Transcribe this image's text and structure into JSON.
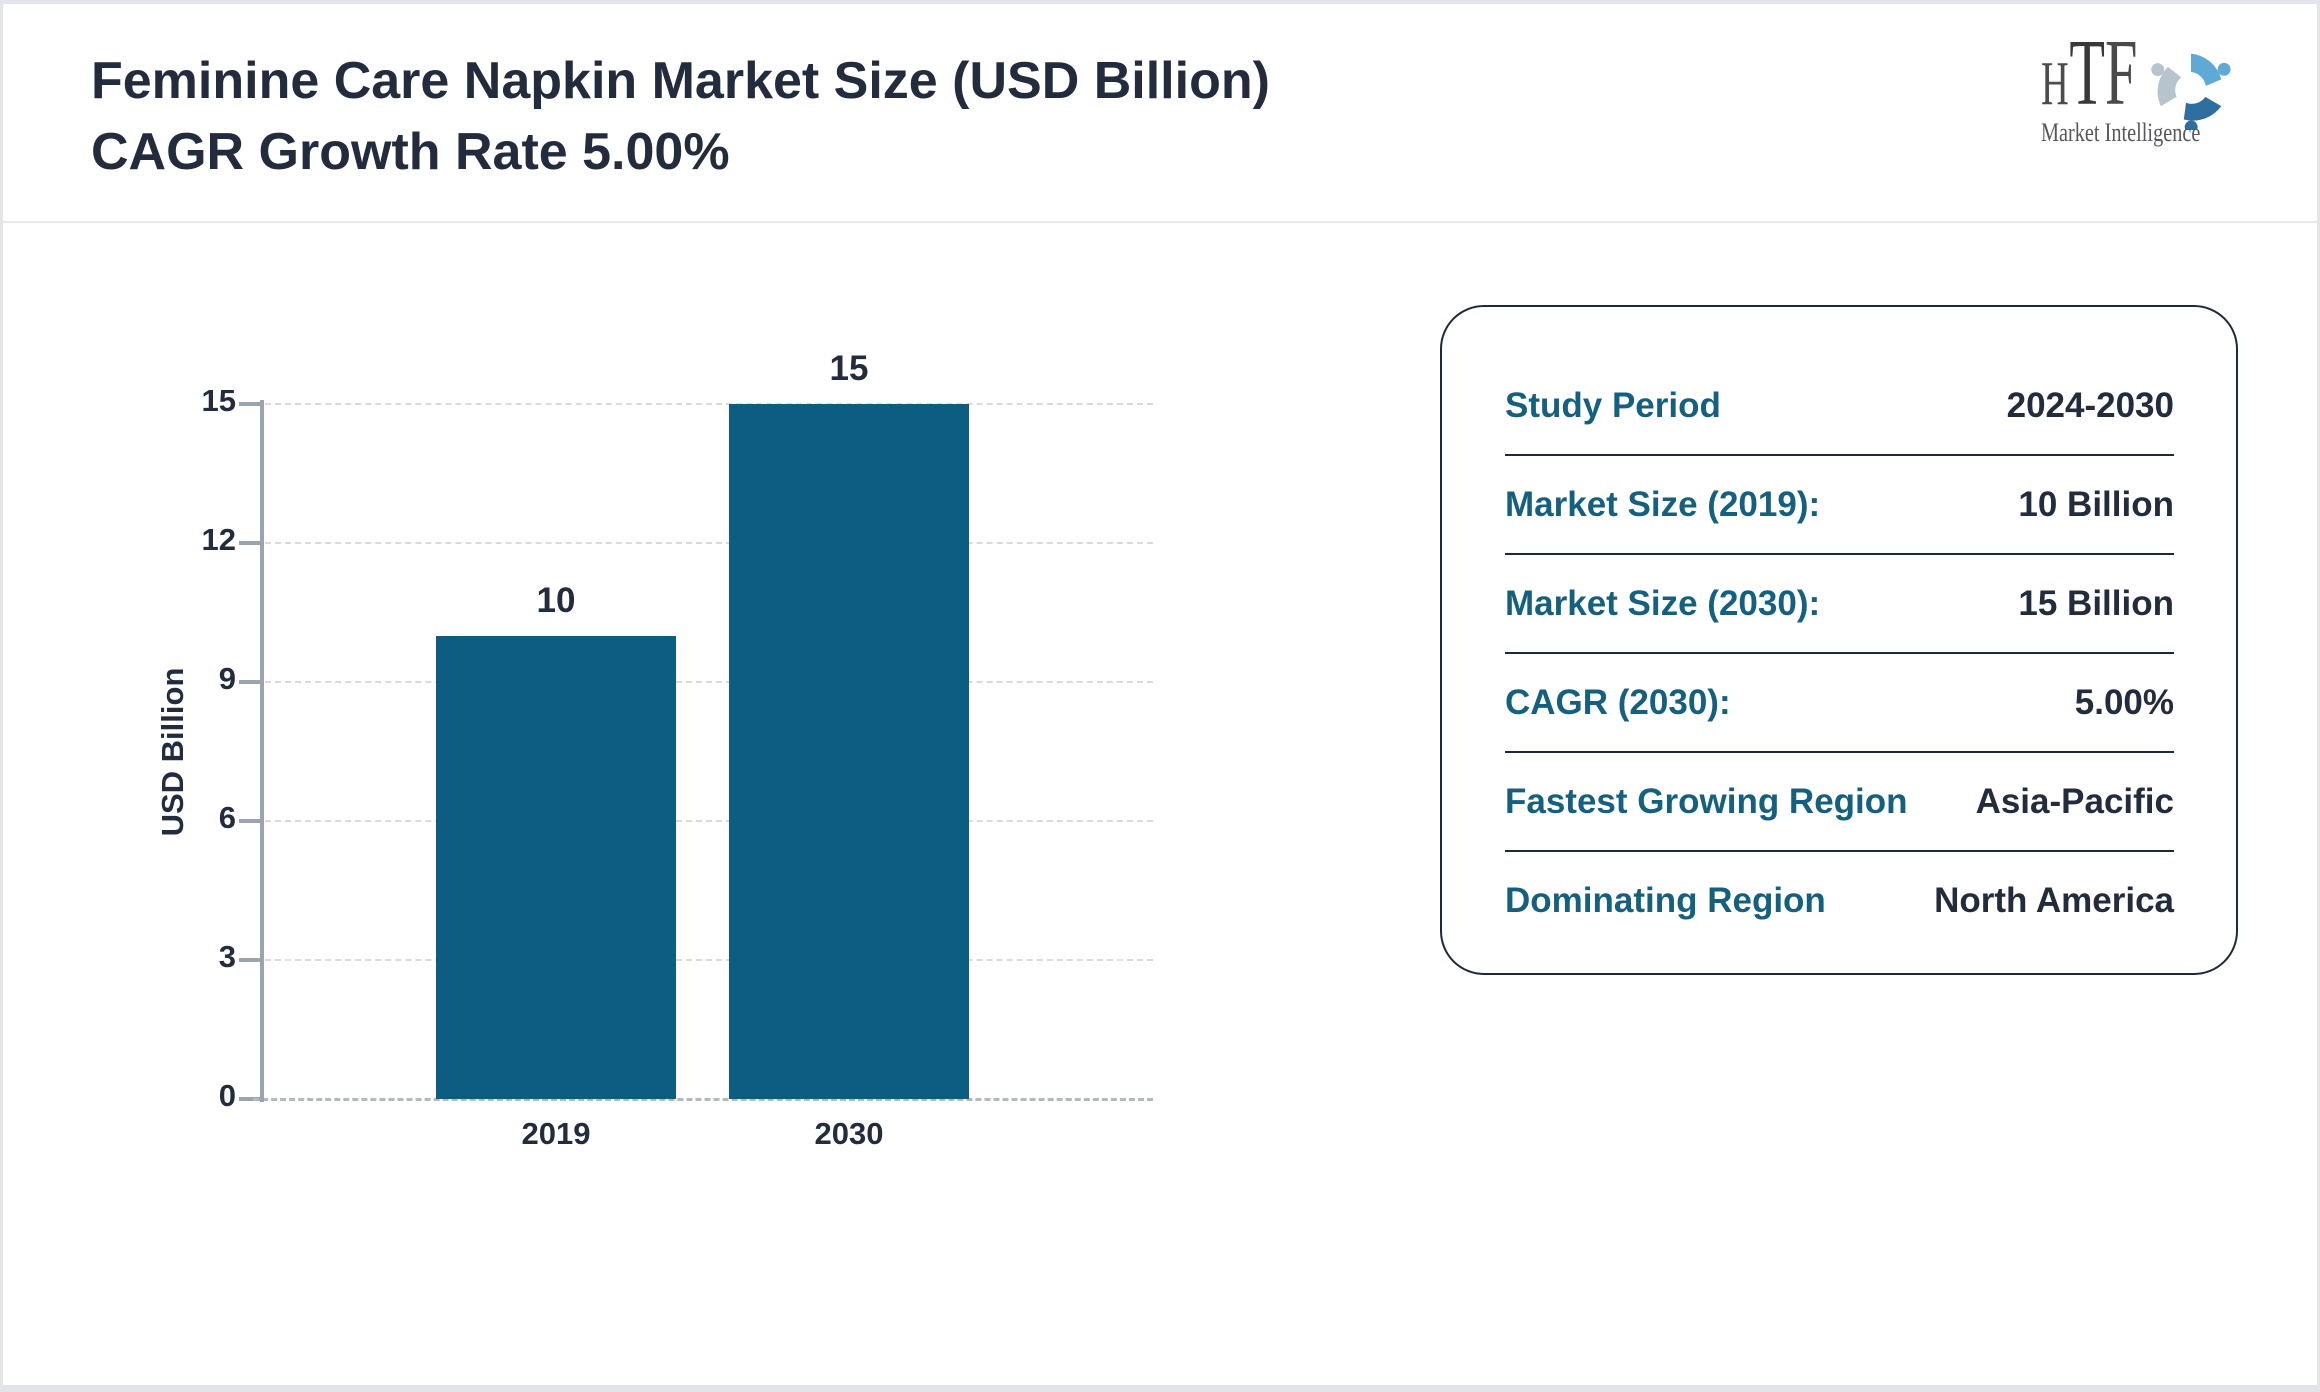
{
  "header": {
    "title_line1": "Feminine Care Napkin Market Size (USD Billion)",
    "title_line2": "CAGR Growth Rate 5.00%"
  },
  "logo": {
    "brand_letters": [
      "H",
      "T",
      "F"
    ],
    "tagline": "Market Intelligence",
    "colors": {
      "light_blue": "#5ea9d6",
      "steel_blue": "#2f6f9f",
      "gray_blue": "#b7c3cd"
    }
  },
  "chart_data": {
    "type": "bar",
    "categories": [
      "2019",
      "2030"
    ],
    "values": [
      10,
      15
    ],
    "bar_labels": [
      "10",
      "15"
    ],
    "title": "",
    "xlabel": "",
    "ylabel": "USD Billion",
    "ylim": [
      0,
      15
    ],
    "yticks": [
      0,
      3,
      6,
      9,
      12,
      15
    ],
    "grid": "horizontal-dashed",
    "legend": "none",
    "bar_color": "#0d5d83"
  },
  "panel": {
    "rows": [
      {
        "label": "Study Period",
        "value": "2024-2030"
      },
      {
        "label": "Market Size (2019):",
        "value": "10 Billion"
      },
      {
        "label": "Market Size (2030):",
        "value": "15 Billion"
      },
      {
        "label": "CAGR (2030):",
        "value": "5.00%"
      },
      {
        "label": "Fastest Growing Region",
        "value": "Asia-Pacific"
      },
      {
        "label": "Dominating Region",
        "value": "North America"
      }
    ]
  }
}
